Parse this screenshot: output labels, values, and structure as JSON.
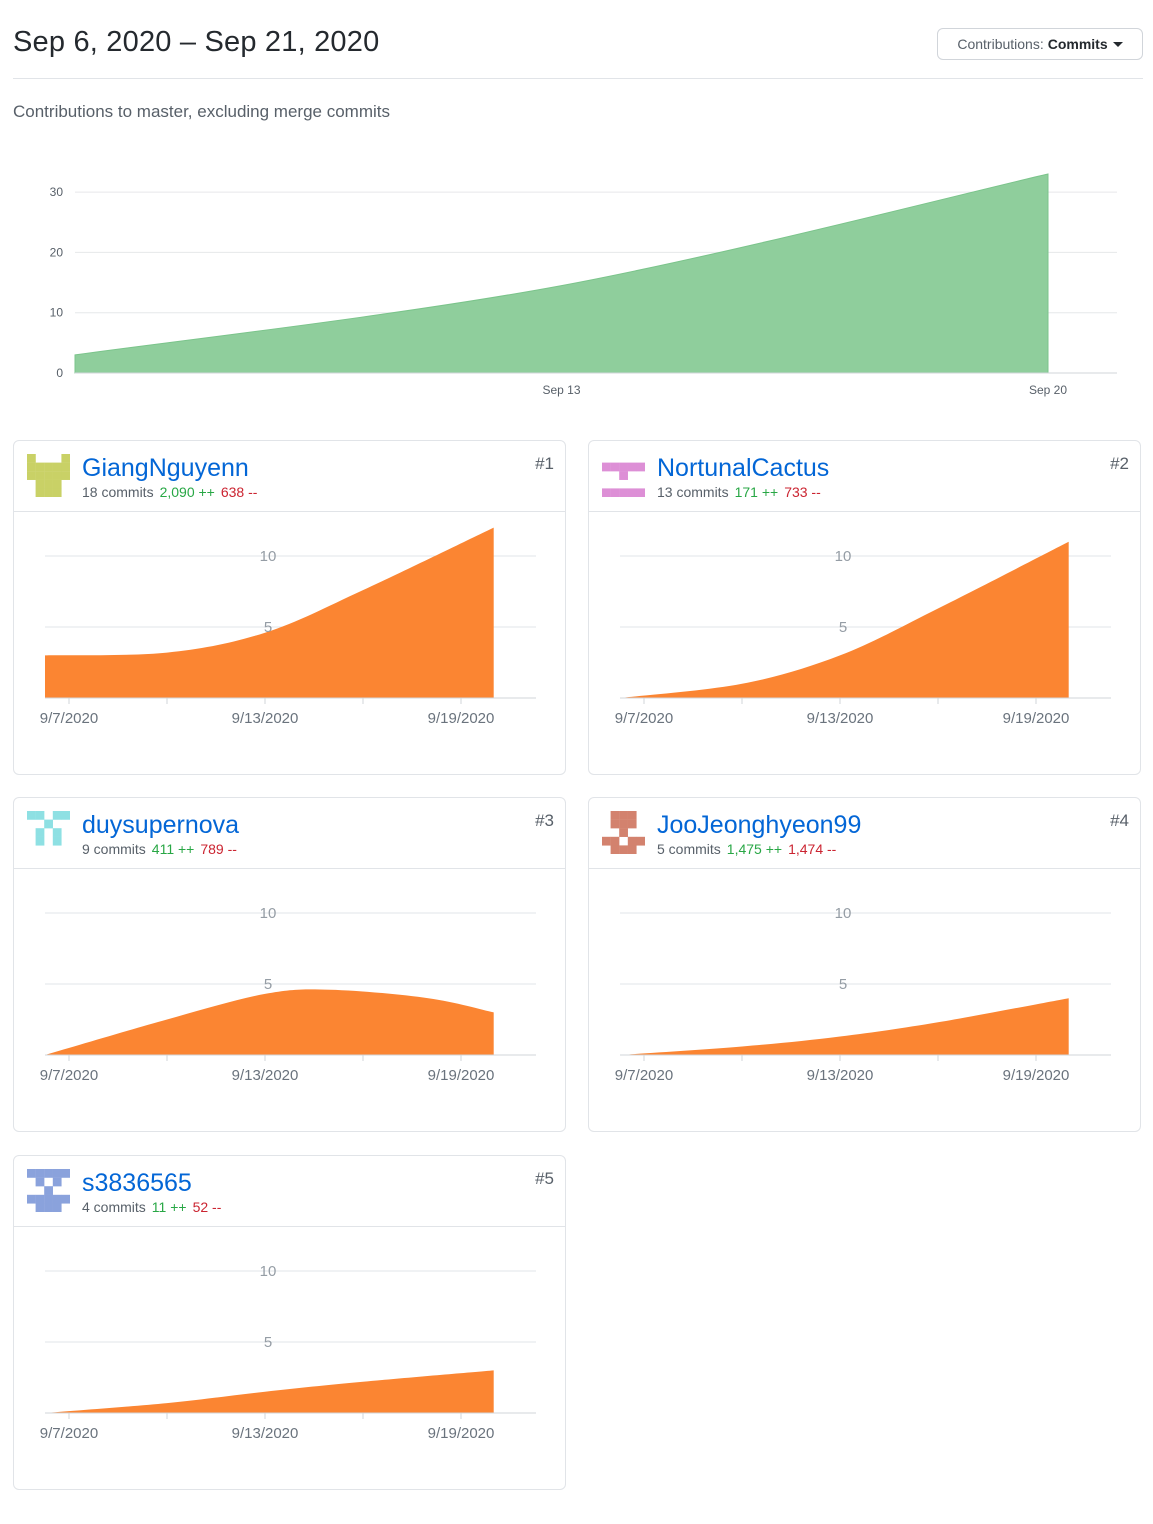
{
  "header": {
    "date_range": "Sep 6, 2020 – Sep 21, 2020",
    "contributions_label": "Contributions:",
    "contributions_value": "Commits"
  },
  "subtitle": "Contributions to master, excluding merge commits",
  "colors": {
    "main_area": "#8fce9c",
    "main_area_stroke": "#7bc48b",
    "contributor_area": "#fb8532",
    "link": "#0366d6",
    "additions": "#28a745",
    "deletions": "#cb2431"
  },
  "chart_data": [
    {
      "type": "area",
      "title": "",
      "x": [
        "2020-09-06",
        "2020-09-13",
        "2020-09-20"
      ],
      "y": [
        3,
        14.5,
        33
      ],
      "x_ticks": [
        "Sep 13",
        "Sep 20"
      ],
      "y_ticks": [
        0,
        10,
        20,
        30
      ],
      "ylim": [
        0,
        33
      ],
      "grid": true
    },
    {
      "type": "area",
      "title": "",
      "contributor": "GiangNguyenn",
      "x": [
        "2020-09-07",
        "2020-09-10",
        "2020-09-13",
        "2020-09-16",
        "2020-09-20"
      ],
      "y": [
        3,
        3.2,
        4.6,
        7.6,
        12
      ],
      "x_ticks": [
        "9/7/2020",
        "9/13/2020",
        "9/19/2020"
      ],
      "y_ticks": [
        5,
        10
      ],
      "ylim": [
        0,
        12
      ]
    },
    {
      "type": "area",
      "title": "",
      "contributor": "NortunalCactus",
      "x": [
        "2020-09-07",
        "2020-09-10",
        "2020-09-13",
        "2020-09-16",
        "2020-09-20"
      ],
      "y": [
        0,
        1,
        3,
        6.3,
        11
      ],
      "x_ticks": [
        "9/7/2020",
        "9/13/2020",
        "9/19/2020"
      ],
      "y_ticks": [
        5,
        10
      ],
      "ylim": [
        0,
        12
      ]
    },
    {
      "type": "area",
      "title": "",
      "contributor": "duysupernova",
      "x": [
        "2020-09-07",
        "2020-09-10",
        "2020-09-13",
        "2020-09-15",
        "2020-09-18",
        "2020-09-20"
      ],
      "y": [
        0,
        2.5,
        4.3,
        4.6,
        4,
        3
      ],
      "x_ticks": [
        "9/7/2020",
        "9/13/2020",
        "9/19/2020"
      ],
      "y_ticks": [
        5,
        10
      ],
      "ylim": [
        0,
        12
      ]
    },
    {
      "type": "area",
      "title": "",
      "contributor": "JooJeonghyeon99",
      "x": [
        "2020-09-07",
        "2020-09-10",
        "2020-09-13",
        "2020-09-16",
        "2020-09-20"
      ],
      "y": [
        0,
        0.6,
        1.3,
        2.3,
        4
      ],
      "x_ticks": [
        "9/7/2020",
        "9/13/2020",
        "9/19/2020"
      ],
      "y_ticks": [
        5,
        10
      ],
      "ylim": [
        0,
        12
      ]
    },
    {
      "type": "area",
      "title": "",
      "contributor": "s3836565",
      "x": [
        "2020-09-07",
        "2020-09-10",
        "2020-09-13",
        "2020-09-16",
        "2020-09-20"
      ],
      "y": [
        0,
        0.7,
        1.5,
        2.2,
        3
      ],
      "x_ticks": [
        "9/7/2020",
        "9/13/2020",
        "9/19/2020"
      ],
      "y_ticks": [
        5,
        10
      ],
      "ylim": [
        0,
        12
      ]
    }
  ],
  "contributors": [
    {
      "name": "GiangNguyenn",
      "commits": "18 commits",
      "additions": "2,090 ++",
      "deletions": "638 --",
      "rank": "#1",
      "avatar_color": "#c9d166"
    },
    {
      "name": "NortunalCactus",
      "commits": "13 commits",
      "additions": "171 ++",
      "deletions": "733 --",
      "rank": "#2",
      "avatar_color": "#dd8fd6"
    },
    {
      "name": "duysupernova",
      "commits": "9 commits",
      "additions": "411 ++",
      "deletions": "789 --",
      "rank": "#3",
      "avatar_color": "#8ee0e3"
    },
    {
      "name": "JooJeonghyeon99",
      "commits": "5 commits",
      "additions": "1,475 ++",
      "deletions": "1,474 --",
      "rank": "#4",
      "avatar_color": "#d3826e"
    },
    {
      "name": "s3836565",
      "commits": "4 commits",
      "additions": "11 ++",
      "deletions": "52 --",
      "rank": "#5",
      "avatar_color": "#8aa2dc"
    }
  ]
}
